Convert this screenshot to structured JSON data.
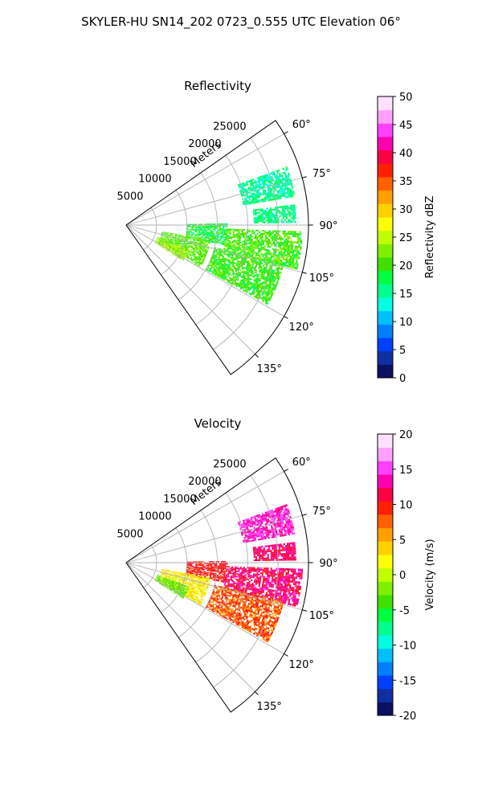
{
  "figure": {
    "suptitle": "SKYLER-HU  SN14_202  0723_0.555 UTC Elevation 06°"
  },
  "chart_data": [
    {
      "type": "heatmap",
      "projection": "polar-sector",
      "title": "Reflectivity",
      "range_label": "Meters",
      "range_ticks": [
        5000,
        10000,
        15000,
        20000,
        25000
      ],
      "range_max": 30000,
      "azimuth_range_deg": [
        55,
        145
      ],
      "azimuth_ticks": [
        "60°",
        "75°",
        "90°",
        "105°",
        "120°",
        "135°"
      ],
      "azimuth_tick_values": [
        60,
        75,
        90,
        105,
        120,
        135
      ],
      "grid": true,
      "colorbar": {
        "label": "Reflectivity dBZ",
        "min": 0,
        "max": 50,
        "ticks": [
          0,
          5,
          10,
          15,
          20,
          25,
          30,
          35,
          40,
          45,
          50
        ],
        "colors": [
          "#0b1060",
          "#1030a0",
          "#0040ff",
          "#0080ff",
          "#00c0ff",
          "#00ffe0",
          "#00ff90",
          "#00ff40",
          "#40e000",
          "#7ff000",
          "#c0ff00",
          "#ffff00",
          "#ffd000",
          "#ffa000",
          "#ff6000",
          "#ff2000",
          "#ff0040",
          "#ff00b0",
          "#ff40ff",
          "#ffa0ff",
          "#ffe0ff"
        ]
      },
      "echo_regions": [
        {
          "az": [
            89,
            101
          ],
          "r": [
            10000,
            16500
          ],
          "values": [
            14,
            22
          ]
        },
        {
          "az": [
            92,
            104
          ],
          "r": [
            16500,
            29000
          ],
          "values": [
            17,
            24
          ]
        },
        {
          "az": [
            104,
            119
          ],
          "r": [
            15000,
            26500
          ],
          "values": [
            17,
            23
          ]
        },
        {
          "az": [
            100,
            119
          ],
          "r": [
            6000,
            14000
          ],
          "values": [
            18,
            24
          ]
        },
        {
          "az": [
            111,
            122
          ],
          "r": [
            5500,
            11000
          ],
          "values": [
            20,
            28
          ]
        },
        {
          "az": [
            70,
            80
          ],
          "r": [
            19500,
            28000
          ],
          "values": [
            12,
            18
          ]
        },
        {
          "az": [
            83,
            89
          ],
          "r": [
            21000,
            28000
          ],
          "values": [
            13,
            19
          ]
        }
      ]
    },
    {
      "type": "heatmap",
      "projection": "polar-sector",
      "title": "Velocity",
      "range_label": "Meters",
      "range_ticks": [
        5000,
        10000,
        15000,
        20000,
        25000
      ],
      "range_max": 30000,
      "azimuth_range_deg": [
        55,
        145
      ],
      "azimuth_ticks": [
        "60°",
        "75°",
        "90°",
        "105°",
        "120°",
        "135°"
      ],
      "azimuth_tick_values": [
        60,
        75,
        90,
        105,
        120,
        135
      ],
      "grid": true,
      "colorbar": {
        "label": "Velocity (m/s)",
        "min": -20,
        "max": 20,
        "ticks": [
          -20,
          -15,
          -10,
          -5,
          0,
          5,
          10,
          15,
          20
        ],
        "colors": [
          "#0b1060",
          "#1030a0",
          "#0040ff",
          "#0080ff",
          "#00c0ff",
          "#00ffe0",
          "#00ff90",
          "#00ff40",
          "#40e000",
          "#7ff000",
          "#c0ff00",
          "#ffff00",
          "#ffd000",
          "#ffa000",
          "#ff6000",
          "#ff2000",
          "#ff0040",
          "#ff00b0",
          "#ff40ff",
          "#ffa0ff",
          "#ffe0ff"
        ]
      },
      "echo_regions": [
        {
          "az": [
            89,
            101
          ],
          "r": [
            10000,
            16500
          ],
          "values": [
            8,
            12
          ]
        },
        {
          "az": [
            92,
            104
          ],
          "r": [
            16500,
            29000
          ],
          "values": [
            9,
            15
          ]
        },
        {
          "az": [
            104,
            119
          ],
          "r": [
            15000,
            26500
          ],
          "values": [
            5,
            11
          ]
        },
        {
          "az": [
            100,
            119
          ],
          "r": [
            6000,
            14000
          ],
          "values": [
            0,
            5
          ]
        },
        {
          "az": [
            111,
            122
          ],
          "r": [
            5500,
            11000
          ],
          "values": [
            -5,
            -2
          ]
        },
        {
          "az": [
            70,
            80
          ],
          "r": [
            19500,
            28000
          ],
          "values": [
            12,
            16
          ]
        },
        {
          "az": [
            83,
            89
          ],
          "r": [
            21000,
            28000
          ],
          "values": [
            10,
            14
          ]
        }
      ]
    }
  ]
}
